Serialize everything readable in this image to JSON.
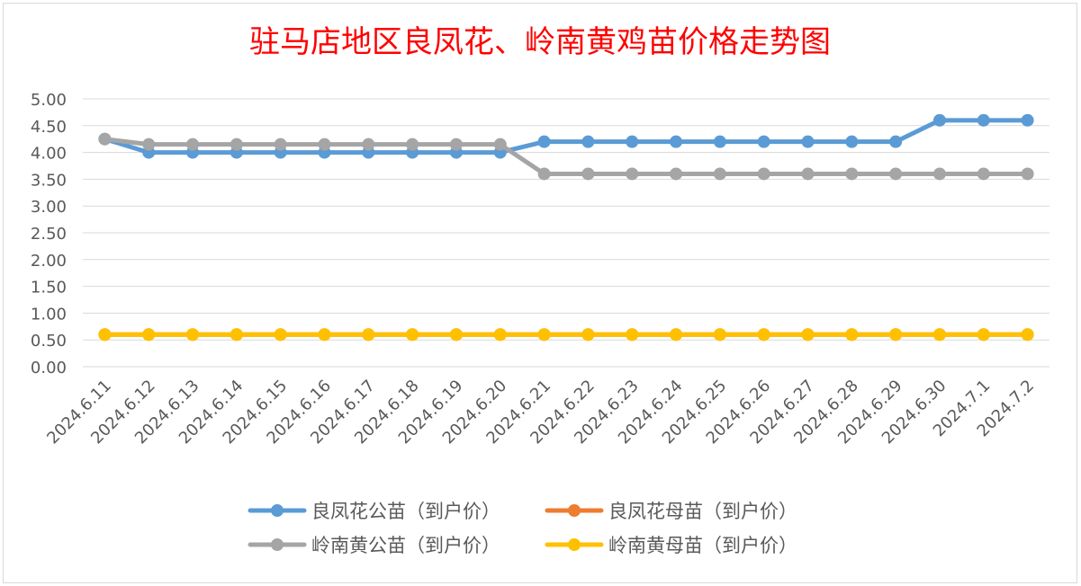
{
  "chart_data": {
    "type": "line",
    "title": "驻马店地区良凤花、岭南黄鸡苗价格走势图",
    "xlabel": "",
    "ylabel": "",
    "ylim": [
      0,
      5
    ],
    "y_ticks": [
      "0.00",
      "0.50",
      "1.00",
      "1.50",
      "2.00",
      "2.50",
      "3.00",
      "3.50",
      "4.00",
      "4.50",
      "5.00"
    ],
    "grid": true,
    "legend_position": "bottom",
    "x": [
      "2024.6.11",
      "2024.6.12",
      "2024.6.13",
      "2024.6.14",
      "2024.6.15",
      "2024.6.16",
      "2024.6.17",
      "2024.6.18",
      "2024.6.19",
      "2024.6.20",
      "2024.6.21",
      "2024.6.22",
      "2024.6.23",
      "2024.6.24",
      "2024.6.25",
      "2024.6.26",
      "2024.6.27",
      "2024.6.28",
      "2024.6.29",
      "2024.6.30",
      "2024.7.1",
      "2024.7.2"
    ],
    "series": [
      {
        "name": "良凤花公苗（到户价）",
        "color": "#5b9bd5",
        "values": [
          4.25,
          4.0,
          4.0,
          4.0,
          4.0,
          4.0,
          4.0,
          4.0,
          4.0,
          4.0,
          4.2,
          4.2,
          4.2,
          4.2,
          4.2,
          4.2,
          4.2,
          4.2,
          4.2,
          4.6,
          4.6,
          4.6
        ]
      },
      {
        "name": "良凤花母苗（到户价）",
        "color": "#ed7d31",
        "values": [
          0.6,
          0.6,
          0.6,
          0.6,
          0.6,
          0.6,
          0.6,
          0.6,
          0.6,
          0.6,
          0.6,
          0.6,
          0.6,
          0.6,
          0.6,
          0.6,
          0.6,
          0.6,
          0.6,
          0.6,
          0.6,
          0.6
        ]
      },
      {
        "name": "岭南黄公苗（到户价）",
        "color": "#a5a5a5",
        "values": [
          4.25,
          4.15,
          4.15,
          4.15,
          4.15,
          4.15,
          4.15,
          4.15,
          4.15,
          4.15,
          3.6,
          3.6,
          3.6,
          3.6,
          3.6,
          3.6,
          3.6,
          3.6,
          3.6,
          3.6,
          3.6,
          3.6
        ]
      },
      {
        "name": "岭南黄母苗（到户价）",
        "color": "#ffc000",
        "values": [
          0.6,
          0.6,
          0.6,
          0.6,
          0.6,
          0.6,
          0.6,
          0.6,
          0.6,
          0.6,
          0.6,
          0.6,
          0.6,
          0.6,
          0.6,
          0.6,
          0.6,
          0.6,
          0.6,
          0.6,
          0.6,
          0.6
        ]
      }
    ]
  }
}
